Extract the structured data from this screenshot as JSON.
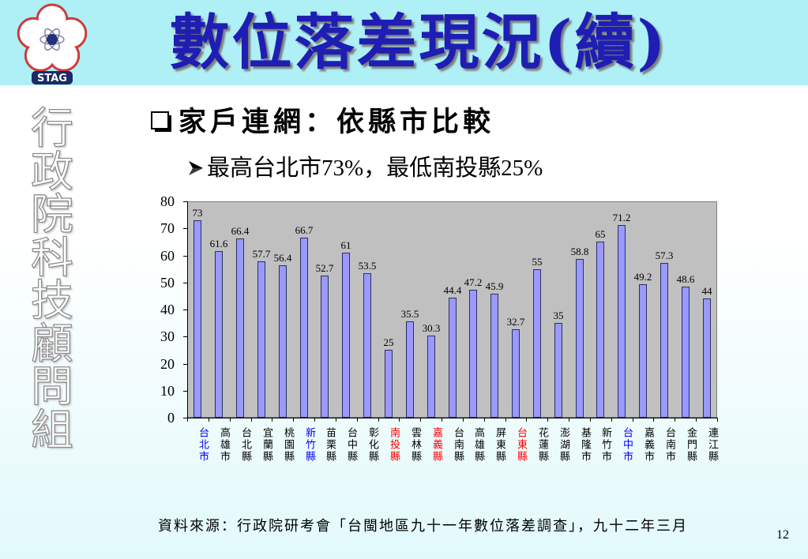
{
  "slide": {
    "logo_text": "STAG",
    "title": "數位落差現況(續)",
    "org_vertical": "行政院科技顧問組",
    "bullet_main": "家戶連網：依縣市比較",
    "bullet_sub": "最高台北市73%，最低南投縣25%",
    "source": "資料來源：行政院研考會「台閩地區九十一年數位落差調查」，九十二年三月",
    "page_number": "12"
  },
  "icons": {
    "logo": "plum-blossom-logo-icon",
    "bullet_main": "shadowed-square-bullet-icon",
    "bullet_sub": "arrowhead-bullet-icon"
  },
  "colors": {
    "header_background": "#aef0f6",
    "title_text": "#1e1eb4",
    "logo_outline": "#cf3a3a",
    "logo_badge": "#1c2a66"
  },
  "chart_data": {
    "type": "bar",
    "categories": [
      "台北市",
      "高雄市",
      "台北縣",
      "宜蘭縣",
      "桃園縣",
      "新竹縣",
      "苗栗縣",
      "台中縣",
      "彰化縣",
      "南投縣",
      "雲林縣",
      "嘉義縣",
      "台南縣",
      "高雄縣",
      "屏東縣",
      "台東縣",
      "花蓮縣",
      "澎湖縣",
      "基隆市",
      "新竹市",
      "台中市",
      "嘉義市",
      "台南市",
      "金門縣",
      "連江縣"
    ],
    "values": [
      73,
      61.6,
      66.4,
      57.7,
      56.4,
      66.7,
      52.7,
      61,
      53.5,
      25,
      35.5,
      30.3,
      44.4,
      47.2,
      45.9,
      32.7,
      55,
      35,
      58.8,
      65,
      71.2,
      49.2,
      57.3,
      48.6,
      44
    ],
    "category_colors": [
      "#0000ff",
      "#000000",
      "#000000",
      "#000000",
      "#000000",
      "#0000ff",
      "#000000",
      "#000000",
      "#000000",
      "#ff0000",
      "#000000",
      "#ff0000",
      "#000000",
      "#000000",
      "#000000",
      "#ff0000",
      "#000000",
      "#000000",
      "#000000",
      "#000000",
      "#0000ff",
      "#000000",
      "#000000",
      "#000000",
      "#000000"
    ],
    "bar_color": "#9999ff",
    "plot_background": "#c0c0c0",
    "ylim": [
      0,
      80
    ],
    "yticks": [
      0,
      10,
      20,
      30,
      40,
      50,
      60,
      70,
      80
    ],
    "grid": false,
    "legend": "none",
    "data_labels": true
  }
}
